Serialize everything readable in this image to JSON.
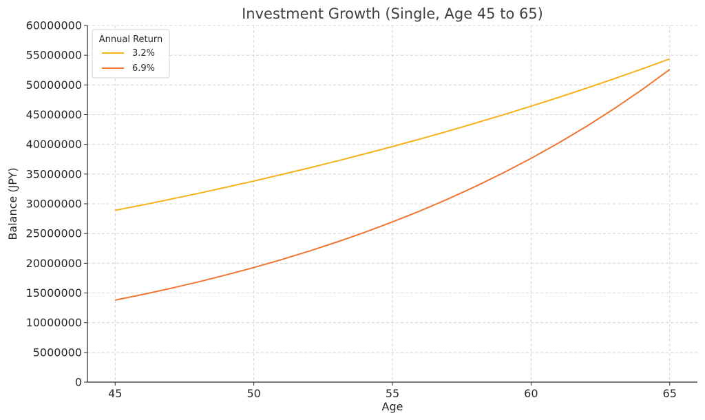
{
  "chart_data": {
    "type": "line",
    "title": "Investment Growth (Single, Age 45 to 65)",
    "xlabel": "Age",
    "ylabel": "Balance (JPY)",
    "xlim": [
      44,
      66
    ],
    "ylim": [
      0,
      60000000
    ],
    "xticks": [
      45,
      50,
      55,
      60,
      65
    ],
    "yticks": [
      0,
      5000000,
      10000000,
      15000000,
      20000000,
      25000000,
      30000000,
      35000000,
      40000000,
      45000000,
      50000000,
      55000000,
      60000000
    ],
    "grid": true,
    "legend": {
      "title": "Annual Return",
      "placement": "top-left"
    },
    "x": [
      45,
      46,
      47,
      48,
      49,
      50,
      51,
      52,
      53,
      54,
      55,
      56,
      57,
      58,
      59,
      60,
      61,
      62,
      63,
      64,
      65
    ],
    "series": [
      {
        "name": "3.2%",
        "color": "#F5B21B",
        "values": [
          28900000,
          29820000,
          30770000,
          31760000,
          32780000,
          33830000,
          34920000,
          36040000,
          37200000,
          38400000,
          39630000,
          40900000,
          42220000,
          43580000,
          44980000,
          46420000,
          47910000,
          49450000,
          51040000,
          52680000,
          54370000
        ]
      },
      {
        "name": "6.9%",
        "color": "#EE7633",
        "values": [
          13800000,
          14750000,
          15770000,
          16860000,
          18030000,
          19280000,
          20610000,
          22040000,
          23570000,
          25200000,
          26950000,
          28810000,
          30800000,
          32930000,
          35210000,
          37650000,
          40250000,
          43030000,
          46010000,
          49190000,
          52590000
        ]
      }
    ]
  }
}
